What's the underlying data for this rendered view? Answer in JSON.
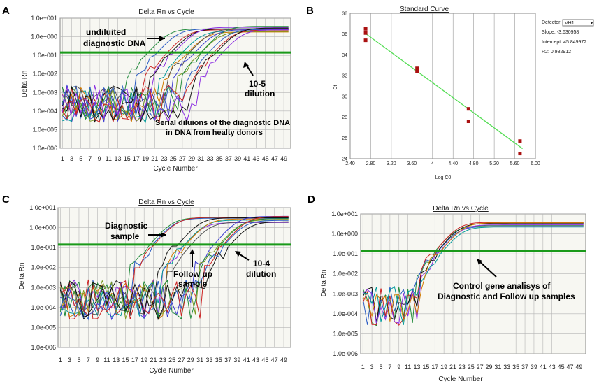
{
  "colors": {
    "threshold": "#1a9a1a",
    "fit_line": "#55dd55",
    "points": "#aa1111",
    "grid": "#b5b5b5",
    "panel_bg": "#f7f7f2",
    "curves": [
      "#1f8a3a",
      "#2b5cc4",
      "#cc2222",
      "#111111",
      "#8a2be2",
      "#009a9a",
      "#d07a00",
      "#555555",
      "#3a3ad0",
      "#7a9a20"
    ]
  },
  "chart_data": [
    {
      "panel": "A",
      "type": "line",
      "title": "Delta Rn vs Cycle",
      "xlabel": "Cycle Number",
      "ylabel": "Delta Rn",
      "yscale": "log",
      "ylim_exp": [
        -6,
        1
      ],
      "y_ticks": [
        "1.0e+001",
        "1.0e+000",
        "1.0e-001",
        "1.0e-002",
        "1.0e-003",
        "1.0e-004",
        "1.0e-005",
        "1.0e-006"
      ],
      "x_ticks": [
        "1",
        "3",
        "5",
        "7",
        "9",
        "11",
        "13",
        "15",
        "17",
        "19",
        "21",
        "23",
        "25",
        "27",
        "29",
        "31",
        "33",
        "35",
        "37",
        "39",
        "41",
        "43",
        "45",
        "47",
        "49"
      ],
      "threshold_exp": -0.85,
      "series_midpoints": [
        24,
        26,
        28,
        29,
        30,
        31,
        32,
        33,
        34,
        35,
        36,
        37,
        38,
        39,
        40
      ],
      "annotations": {
        "a1": "undiluited",
        "a2": "diagnostic DNA",
        "b1": "10-5",
        "b2": "dilution",
        "c1": "Serial diluions of the  diagnostic DNA",
        "c2": "in DNA from healty donors"
      }
    },
    {
      "panel": "B",
      "type": "scatter",
      "title": "Standard Curve",
      "xlabel": "Log C0",
      "ylabel": "Ct",
      "xlim": [
        2.4,
        6.0
      ],
      "ylim": [
        24,
        38
      ],
      "x_ticks": [
        "2.40",
        "2.80",
        "3.20",
        "3.60",
        "4",
        "4.40",
        "4.80",
        "5.20",
        "5.60",
        "6.00"
      ],
      "y_ticks": [
        "38",
        "36",
        "34",
        "32",
        "30",
        "28",
        "26",
        "24"
      ],
      "points": [
        {
          "x": 2.7,
          "y": 36.5
        },
        {
          "x": 2.7,
          "y": 36.1
        },
        {
          "x": 2.7,
          "y": 35.4
        },
        {
          "x": 3.7,
          "y": 32.7
        },
        {
          "x": 3.7,
          "y": 32.4
        },
        {
          "x": 4.7,
          "y": 28.8
        },
        {
          "x": 4.7,
          "y": 27.6
        },
        {
          "x": 5.7,
          "y": 25.7
        },
        {
          "x": 5.7,
          "y": 24.5
        }
      ],
      "fit": {
        "slope": -3.630958,
        "intercept": 45.849972
      },
      "side": {
        "detector_label": "Detector:",
        "detector_value": "VH1",
        "slope": "Slope: -3.630958",
        "intercept": "Intercept: 45.849972",
        "r2": "R2: 0.982912"
      }
    },
    {
      "panel": "C",
      "type": "line",
      "title": "Delta Rn vs Cycle",
      "xlabel": "Cycle Number",
      "ylabel": "Delta Rn",
      "yscale": "log",
      "ylim_exp": [
        -6,
        1
      ],
      "y_ticks": [
        "1.0e+001",
        "1.0e+000",
        "1.0e-001",
        "1.0e-002",
        "1.0e-003",
        "1.0e-004",
        "1.0e-005",
        "1.0e-006"
      ],
      "x_ticks": [
        "1",
        "3",
        "5",
        "7",
        "9",
        "11",
        "13",
        "15",
        "17",
        "19",
        "21",
        "23",
        "25",
        "27",
        "29",
        "31",
        "33",
        "35",
        "37",
        "39",
        "41",
        "43",
        "45",
        "47",
        "49"
      ],
      "threshold_exp": -0.85,
      "series_midpoints": [
        25,
        25.5,
        26,
        31,
        31.5,
        32,
        32.5,
        33,
        39,
        39.5,
        40,
        40.5,
        41,
        41.5
      ],
      "annotations": {
        "a1": "Diagnostic",
        "a2": "sample",
        "b1": "Follow up",
        "b2": "sample",
        "c1": "10-4",
        "c2": "dilution"
      }
    },
    {
      "panel": "D",
      "type": "line",
      "title": "Delta Rn vs Cycle",
      "xlabel": "Cycle Number",
      "ylabel": "Delta Rn",
      "yscale": "log",
      "ylim_exp": [
        -6,
        1
      ],
      "y_ticks": [
        "1.0e+001",
        "1.0e+000",
        "1.0e-001",
        "1.0e-002",
        "1.0e-003",
        "1.0e-004",
        "1.0e-005",
        "1.0e-006"
      ],
      "x_ticks": [
        "1",
        "3",
        "5",
        "7",
        "9",
        "11",
        "13",
        "15",
        "17",
        "19",
        "21",
        "23",
        "25",
        "27",
        "29",
        "31",
        "33",
        "35",
        "37",
        "39",
        "41",
        "43",
        "45",
        "47",
        "49"
      ],
      "threshold_exp": -0.85,
      "series_midpoints": [
        21.5,
        22,
        22.2,
        22.5,
        22.8,
        23,
        23.3
      ],
      "annotations": {
        "a1": "Control gene analisys of",
        "a2": "Diagnostic and Follow up samples"
      }
    }
  ]
}
